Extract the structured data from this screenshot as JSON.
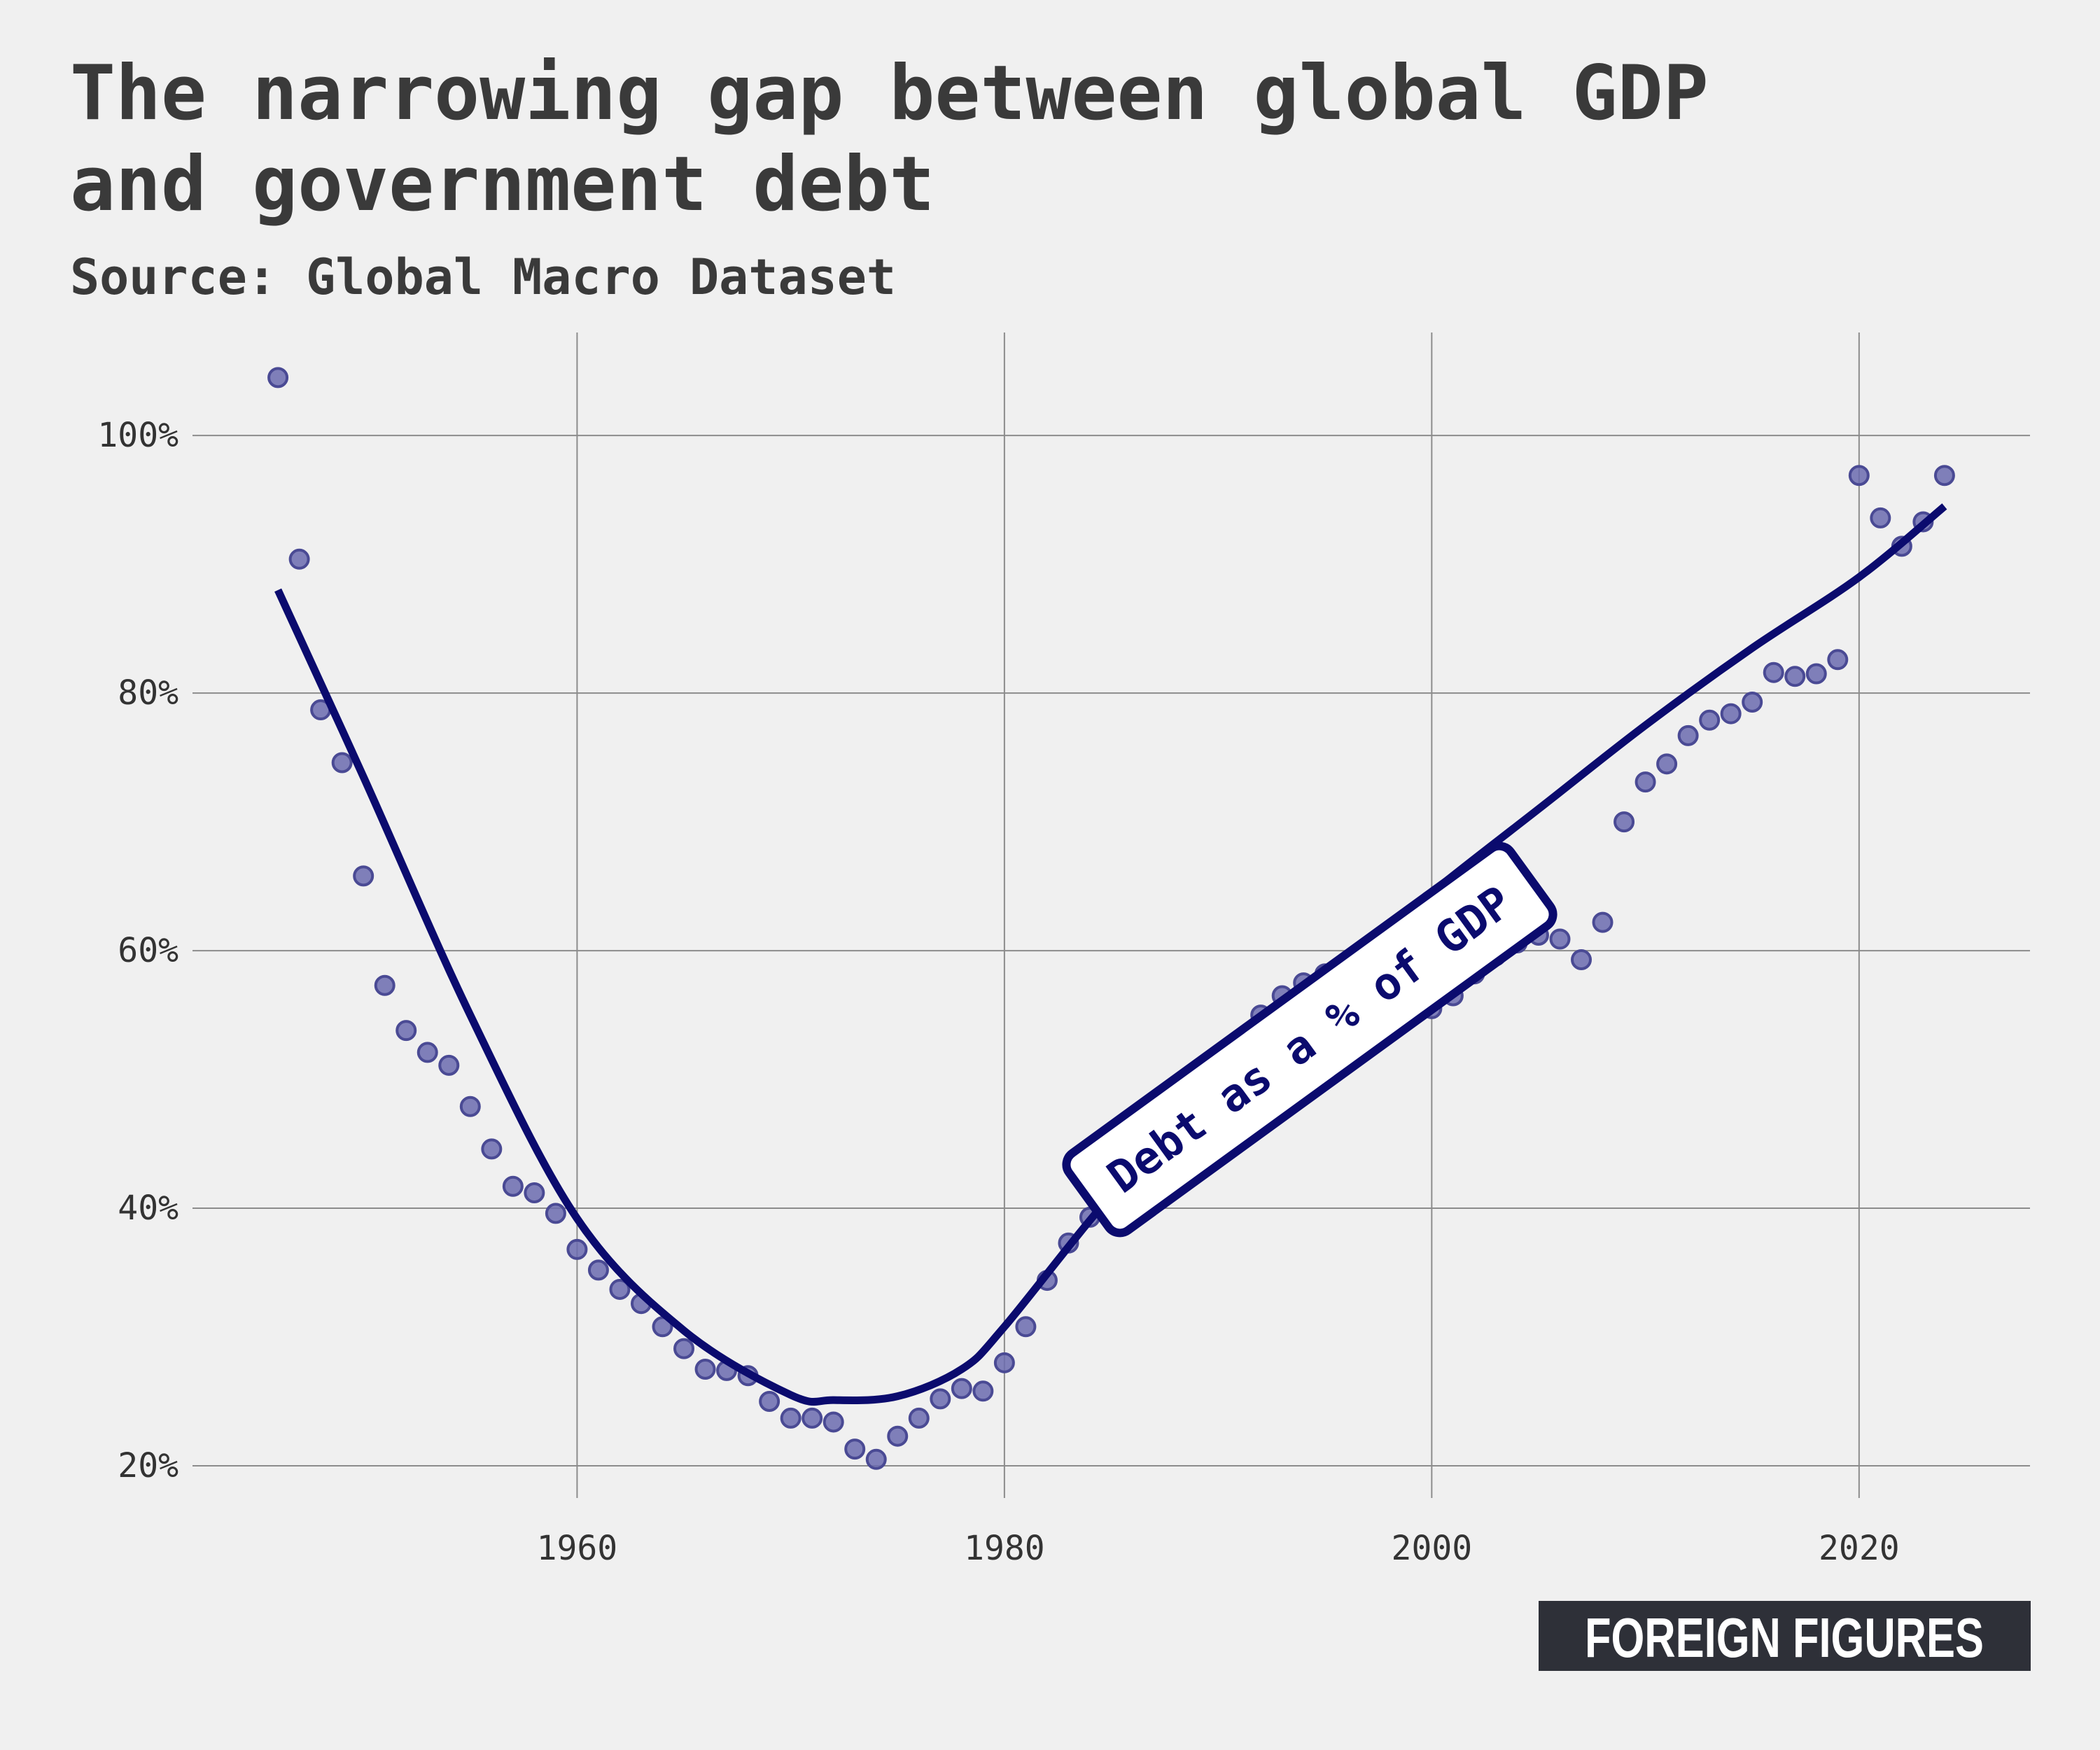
{
  "title_line1": "The narrowing gap between global GDP",
  "title_line2": "and government debt",
  "subtitle": "Source: Global Macro Dataset",
  "logo": "FOREIGN FIGURES",
  "colors": {
    "background": "#f0f0f0",
    "point_fill": "#6b6baf",
    "point_stroke": "#4a4a94",
    "line": "#0b0b6e",
    "text": "#3a3a3a",
    "logo_bg": "#2e3038"
  },
  "chart_data": {
    "type": "scatter",
    "title": "The narrowing gap between global GDP and government debt",
    "subtitle": "Source: Global Macro Dataset",
    "xlim": [
      1942,
      2028
    ],
    "ylim": [
      17.5,
      108
    ],
    "x_ticks": [
      1960,
      1980,
      2000,
      2020
    ],
    "x_tick_labels": [
      "1960",
      "1980",
      "2000",
      "2020"
    ],
    "y_ticks": [
      20,
      40,
      60,
      80,
      100
    ],
    "y_tick_labels": [
      "20%",
      "40%",
      "60%",
      "80%",
      "100%"
    ],
    "grid": true,
    "series": [
      {
        "name": "Debt as a % of GDP",
        "kind": "points",
        "x": [
          1946,
          1947,
          1948,
          1949,
          1950,
          1951,
          1952,
          1953,
          1954,
          1955,
          1956,
          1957,
          1958,
          1959,
          1960,
          1961,
          1962,
          1963,
          1964,
          1965,
          1966,
          1967,
          1968,
          1969,
          1970,
          1971,
          1972,
          1973,
          1974,
          1975,
          1976,
          1977,
          1978,
          1979,
          1980,
          1981,
          1982,
          1983,
          1984,
          1985,
          1986,
          1987,
          1988,
          1989,
          1990,
          1991,
          1992,
          1993,
          1994,
          1995,
          1996,
          1997,
          1998,
          1999,
          2000,
          2001,
          2002,
          2003,
          2004,
          2005,
          2006,
          2007,
          2008,
          2009,
          2010,
          2011,
          2012,
          2013,
          2014,
          2015,
          2016,
          2017,
          2018,
          2019,
          2020,
          2021,
          2022,
          2023,
          2024
        ],
        "y": [
          104.5,
          90.4,
          78.7,
          74.6,
          65.8,
          57.3,
          53.8,
          52.1,
          51.1,
          47.9,
          44.6,
          41.7,
          41.2,
          39.6,
          36.8,
          35.2,
          33.7,
          32.6,
          30.8,
          29.1,
          27.5,
          27.4,
          27.0,
          25.0,
          23.7,
          23.7,
          23.4,
          21.3,
          20.5,
          22.3,
          23.7,
          25.2,
          26.0,
          25.8,
          28.0,
          30.8,
          34.4,
          37.3,
          39.3,
          41.6,
          44.0,
          46.7,
          46.8,
          48.0,
          50.5,
          53.0,
          55.0,
          56.5,
          57.5,
          58.2,
          58.7,
          58.6,
          58.2,
          57.6,
          55.5,
          56.5,
          58.2,
          59.6,
          60.6,
          61.2,
          60.9,
          59.3,
          62.2,
          70.0,
          73.1,
          74.5,
          76.7,
          77.9,
          78.4,
          79.3,
          81.6,
          81.3,
          81.5,
          82.6,
          96.9,
          93.6,
          91.4,
          93.3,
          96.9
        ]
      },
      {
        "name": "Debt as a % of GDP",
        "kind": "trend",
        "x": [
          1946,
          1950,
          1955,
          1960,
          1965,
          1970,
          1972,
          1975,
          1978,
          1980,
          1985,
          1990,
          1995,
          2000,
          2005,
          2010,
          2015,
          2020,
          2024
        ],
        "y": [
          88.0,
          73.5,
          55.0,
          39.2,
          30.5,
          25.5,
          25.1,
          25.4,
          27.5,
          30.8,
          41.0,
          49.5,
          57.5,
          64.5,
          71.0,
          77.5,
          83.5,
          89.0,
          94.5
        ]
      }
    ],
    "annotation": "Debt as a % of GDP"
  }
}
